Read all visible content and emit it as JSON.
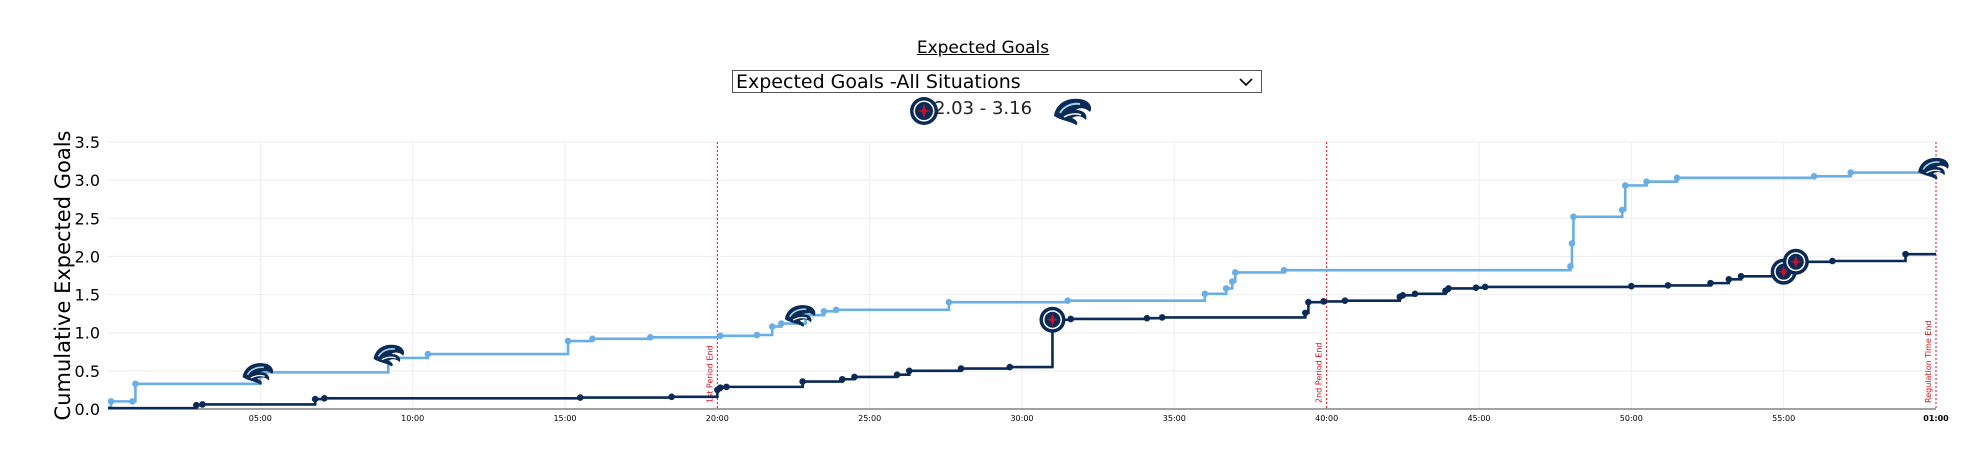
{
  "header": {
    "title": "Expected Goals",
    "selected_option": "Expected Goals -All Situations",
    "score_text": "2.03 - 3.16"
  },
  "colors": {
    "home": "#0b2a55",
    "away": "#6aaee6",
    "period_line": "#e0101a",
    "grid": "#eeeeee"
  },
  "icons": {
    "home": "jets-logo-icon",
    "away": "kraken-logo-icon"
  },
  "chart_data": {
    "type": "line",
    "step": "post",
    "ylabel": "Cumulative Expected Goals",
    "xlabel": "",
    "xlim": [
      0,
      60
    ],
    "ylim": [
      0,
      3.5
    ],
    "yticks": [
      "0.0",
      "0.5",
      "1.0",
      "1.5",
      "2.0",
      "2.5",
      "3.0",
      "3.5"
    ],
    "xticks": [
      {
        "value": 5,
        "label": "05:00"
      },
      {
        "value": 10,
        "label": "10:00"
      },
      {
        "value": 15,
        "label": "15:00"
      },
      {
        "value": 20,
        "label": "20:00"
      },
      {
        "value": 25,
        "label": "25:00"
      },
      {
        "value": 30,
        "label": "30:00"
      },
      {
        "value": 35,
        "label": "35:00"
      },
      {
        "value": 40,
        "label": "40:00"
      },
      {
        "value": 45,
        "label": "45:00"
      },
      {
        "value": 50,
        "label": "50:00"
      },
      {
        "value": 55,
        "label": "55:00"
      },
      {
        "value": 60,
        "label": "01:00"
      }
    ],
    "annotations": [
      {
        "x": 20,
        "label": "1st Period End"
      },
      {
        "x": 40,
        "label": "2nd Period End"
      },
      {
        "x": 60,
        "label": "Regulation Time End"
      }
    ],
    "goals": [
      {
        "series": "away",
        "x": 4.9,
        "y": 0.47
      },
      {
        "series": "away",
        "x": 9.2,
        "y": 0.71
      },
      {
        "series": "away",
        "x": 22.7,
        "y": 1.23
      },
      {
        "series": "home",
        "x": 31.0,
        "y": 1.17
      },
      {
        "series": "home",
        "x": 55.0,
        "y": 1.8
      },
      {
        "series": "home",
        "x": 55.4,
        "y": 1.93
      },
      {
        "series": "away",
        "x": 59.9,
        "y": 3.16
      }
    ],
    "series": [
      {
        "key": "away",
        "x": [
          0,
          0.1,
          0.8,
          0.9,
          5.0,
          9.2,
          10.5,
          15.1,
          15.9,
          17.8,
          20.1,
          21.3,
          21.8,
          22.1,
          22.9,
          23.5,
          23.9,
          27.6,
          31.5,
          36.0,
          36.7,
          36.9,
          37.0,
          38.6,
          48.0,
          48.05,
          48.1,
          49.7,
          49.8,
          50.5,
          51.5,
          56.0,
          57.2,
          59.9,
          60
        ],
        "y": [
          0.02,
          0.1,
          0.1,
          0.33,
          0.48,
          0.67,
          0.72,
          0.89,
          0.92,
          0.94,
          0.96,
          0.97,
          1.08,
          1.12,
          1.23,
          1.28,
          1.3,
          1.4,
          1.42,
          1.51,
          1.58,
          1.67,
          1.79,
          1.82,
          1.87,
          2.17,
          2.52,
          2.61,
          2.93,
          2.98,
          3.03,
          3.05,
          3.1,
          3.16,
          3.16
        ]
      },
      {
        "key": "home",
        "x": [
          0,
          2.9,
          3.1,
          6.8,
          7.1,
          15.5,
          18.5,
          20.0,
          20.1,
          20.3,
          22.8,
          24.1,
          24.5,
          25.9,
          26.3,
          28.0,
          29.6,
          31.0,
          31.6,
          34.1,
          34.6,
          39.3,
          39.4,
          39.9,
          40.6,
          42.4,
          42.5,
          42.9,
          43.9,
          44.0,
          44.9,
          45.2,
          50.0,
          51.2,
          52.6,
          53.2,
          53.6,
          55.0,
          55.4,
          56.6,
          59.0,
          60
        ],
        "y": [
          0.01,
          0.05,
          0.06,
          0.13,
          0.14,
          0.15,
          0.16,
          0.25,
          0.28,
          0.29,
          0.36,
          0.39,
          0.42,
          0.45,
          0.5,
          0.53,
          0.55,
          1.17,
          1.18,
          1.19,
          1.2,
          1.26,
          1.4,
          1.41,
          1.42,
          1.47,
          1.49,
          1.51,
          1.55,
          1.58,
          1.59,
          1.6,
          1.61,
          1.62,
          1.65,
          1.7,
          1.74,
          1.8,
          1.93,
          1.94,
          2.03,
          2.03
        ]
      }
    ]
  }
}
